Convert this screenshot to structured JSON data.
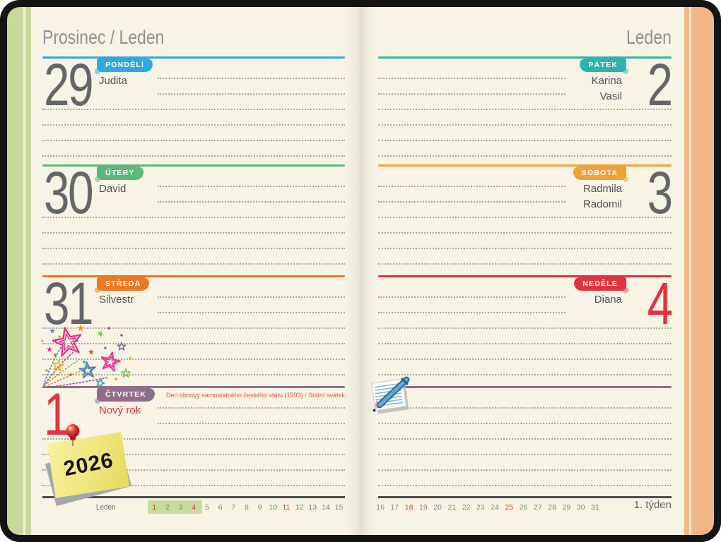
{
  "left_page": {
    "title": "Prosinec / Leden",
    "days": [
      {
        "num": "29",
        "tab": "PONDĚLÍ",
        "names": [
          "Judita"
        ],
        "color": "#2ea9e0"
      },
      {
        "num": "30",
        "tab": "ÚTERÝ",
        "names": [
          "David"
        ],
        "color": "#5bb87a"
      },
      {
        "num": "31",
        "tab": "STŘEDA",
        "names": [
          "Silvestr"
        ],
        "color": "#ee7723"
      },
      {
        "num": "1",
        "tab": "ČTVRTEK",
        "names": [
          "Nový rok"
        ],
        "color": "#916d8b",
        "num_color": "#e2333f",
        "names_color": "#e2333f",
        "holiday_note": "Den obnovy samostatného českého státu (1993) / Státní svátek",
        "holiday_color": "#e2574e"
      }
    ],
    "sticky_note_text": "2026",
    "footer": {
      "month_label": "Leden",
      "highlight_color": "#c8dba0",
      "red_color": "#d9382e",
      "days": [
        {
          "n": "1",
          "red": true,
          "hl": true
        },
        {
          "n": "2",
          "hl": true
        },
        {
          "n": "3",
          "hl": true
        },
        {
          "n": "4",
          "red": true,
          "hl": true
        },
        {
          "n": "5"
        },
        {
          "n": "6"
        },
        {
          "n": "7"
        },
        {
          "n": "8"
        },
        {
          "n": "9"
        },
        {
          "n": "10"
        },
        {
          "n": "11",
          "red": true
        },
        {
          "n": "12"
        },
        {
          "n": "13"
        },
        {
          "n": "14"
        },
        {
          "n": "15"
        }
      ]
    }
  },
  "right_page": {
    "title": "Leden",
    "days": [
      {
        "num": "2",
        "tab": "PÁTEK",
        "names": [
          "Karina",
          "Vasil"
        ],
        "color": "#2cb3aa"
      },
      {
        "num": "3",
        "tab": "SOBOTA",
        "names": [
          "Radmila",
          "Radomil"
        ],
        "color": "#f0a236"
      },
      {
        "num": "4",
        "tab": "NEDĚLE",
        "names": [
          "Diana"
        ],
        "color": "#e2333f",
        "num_color": "#e2333f"
      },
      {
        "num": "",
        "tab": "",
        "names": [],
        "color": "#916d8b"
      }
    ],
    "footer": {
      "week_label": "1. týden",
      "red_color": "#d9382e",
      "days": [
        {
          "n": "16"
        },
        {
          "n": "17"
        },
        {
          "n": "18",
          "red": true
        },
        {
          "n": "19"
        },
        {
          "n": "20"
        },
        {
          "n": "21"
        },
        {
          "n": "22"
        },
        {
          "n": "23"
        },
        {
          "n": "24"
        },
        {
          "n": "25",
          "red": true
        },
        {
          "n": "26"
        },
        {
          "n": "27"
        },
        {
          "n": "28"
        },
        {
          "n": "29"
        },
        {
          "n": "30"
        },
        {
          "n": "31"
        }
      ]
    }
  }
}
